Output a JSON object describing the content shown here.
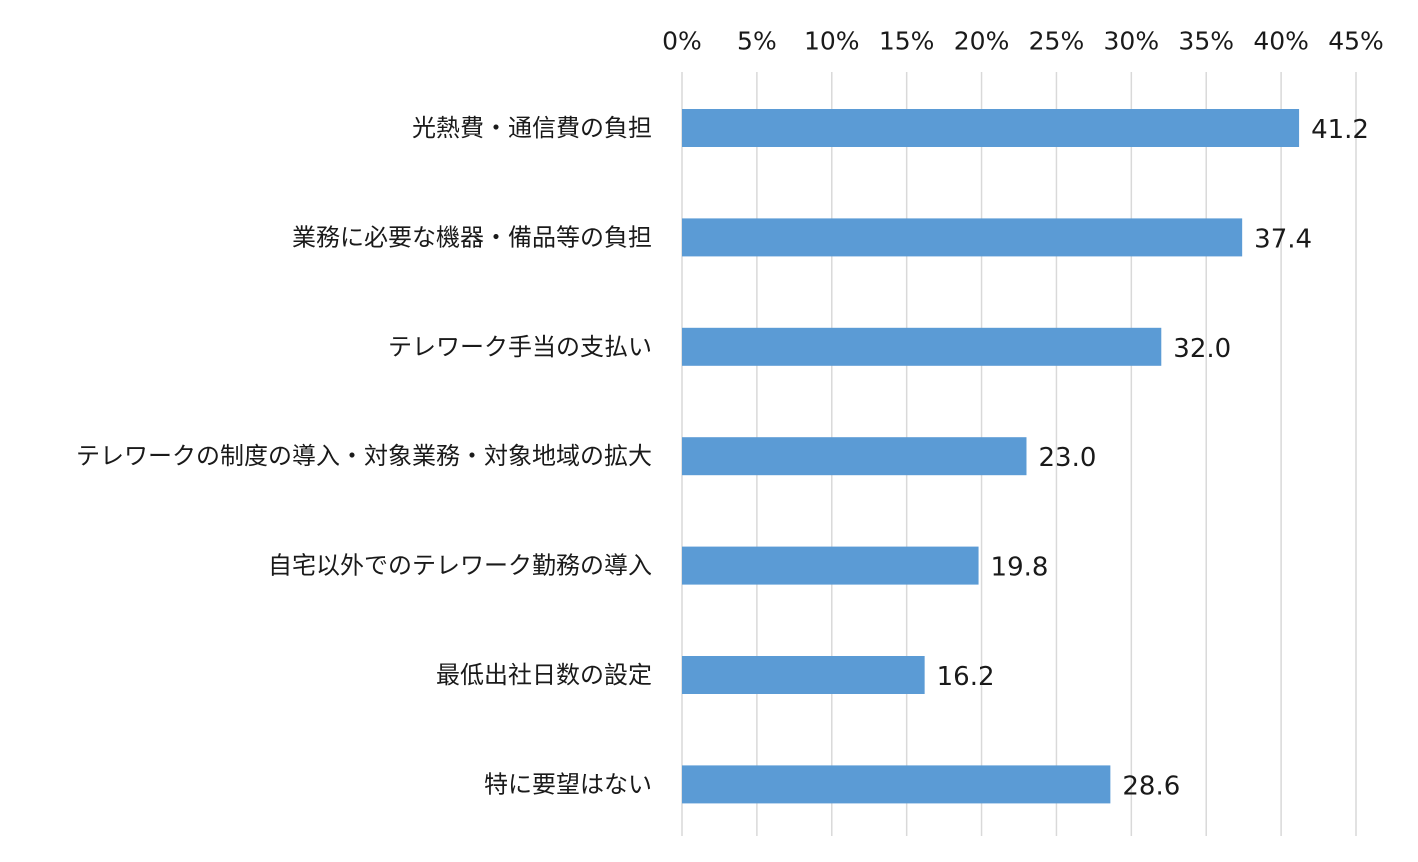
{
  "chart_data": {
    "type": "bar",
    "orientation": "horizontal",
    "categories": [
      "光熱費・通信費の負担",
      "業務に必要な機器・備品等の負担",
      "テレワーク手当の支払い",
      "テレワークの制度の導入・対象業務・対象地域の拡大",
      "自宅以外でのテレワーク勤務の導入",
      "最低出社日数の設定",
      "特に要望はない"
    ],
    "values": [
      41.2,
      37.4,
      32.0,
      23.0,
      19.8,
      16.2,
      28.6
    ],
    "value_labels": [
      "41.2",
      "37.4",
      "32.0",
      "23.0",
      "19.8",
      "16.2",
      "28.6"
    ],
    "xlim": [
      0,
      45
    ],
    "x_ticks": [
      0,
      5,
      10,
      15,
      20,
      25,
      30,
      35,
      40,
      45
    ],
    "x_tick_labels": [
      "0%",
      "5%",
      "10%",
      "15%",
      "20%",
      "25%",
      "30%",
      "35%",
      "40%",
      "45%"
    ],
    "x_axis_position": "top",
    "grid": true,
    "legend": "none",
    "bar_color": "#5b9bd5"
  }
}
